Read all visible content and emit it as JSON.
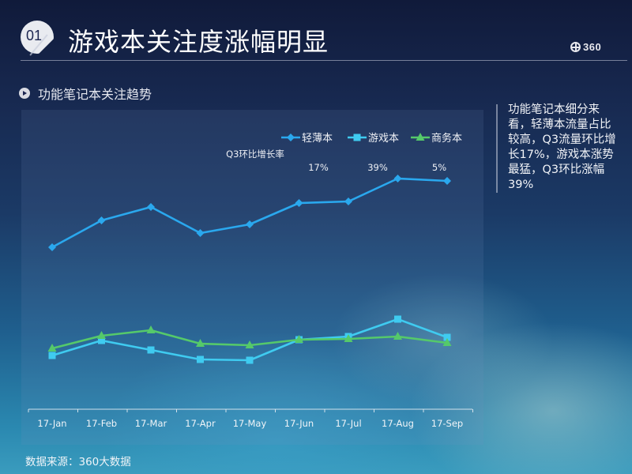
{
  "header": {
    "badge_number": "01",
    "title": "游戏本关注度涨幅明显",
    "logo_text": "360",
    "logo_icon": "360-logo-icon"
  },
  "section": {
    "icon": "play-circle-icon",
    "title": "功能笔记本关注趋势"
  },
  "sidebar_note": "功能笔记本细分来看，轻薄本流量占比较高，Q3流量环比增长17%，游戏本涨势最猛，Q3环比涨幅39%",
  "footer": {
    "source": "数据来源：360大数据"
  },
  "chart_data": {
    "type": "line",
    "title": "功能笔记本关注趋势",
    "xlabel": "",
    "ylabel": "",
    "y_axis_visible": false,
    "grid": false,
    "legend_position": "top-right",
    "categories": [
      "17-Jan",
      "17-Feb",
      "17-Mar",
      "17-Apr",
      "17-May",
      "17-Jun",
      "17-Jul",
      "17-Aug",
      "17-Sep"
    ],
    "value_note": "relative attention index (no y-axis shown; values estimated from plot position)",
    "series": [
      {
        "name": "轻薄本",
        "color": "#2aa8ee",
        "marker": "diamond",
        "values": [
          207,
          241,
          258,
          225,
          236,
          263,
          265,
          294,
          291
        ]
      },
      {
        "name": "游戏本",
        "color": "#3fcbf0",
        "marker": "square",
        "values": [
          70,
          89,
          77,
          65,
          64,
          90,
          94,
          116,
          93
        ]
      },
      {
        "name": "商务本",
        "color": "#55c96a",
        "marker": "triangle",
        "values": [
          79,
          95,
          102,
          85,
          83,
          90,
          91,
          94,
          86
        ]
      }
    ],
    "annotations": {
      "label": "Q3环比增长率",
      "values": [
        {
          "series": "轻薄本",
          "text": "17%"
        },
        {
          "series": "游戏本",
          "text": "39%"
        },
        {
          "series": "商务本",
          "text": "5%"
        }
      ]
    },
    "ylim": [
      0,
      320
    ]
  }
}
